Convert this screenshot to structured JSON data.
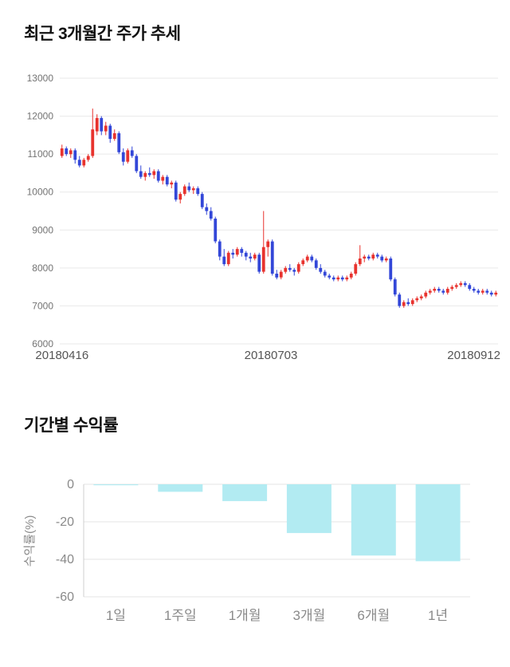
{
  "titles": {
    "price_chart": "최근 3개월간 주가 추세",
    "returns_chart": "기간별 수익률"
  },
  "chart_data": [
    {
      "id": "price",
      "type": "candlestick",
      "title": "최근 3개월간 주가 추세",
      "ylim": [
        6000,
        13000
      ],
      "yticks": [
        13000,
        12000,
        11000,
        10000,
        9000,
        8000,
        7000,
        6000
      ],
      "xtick_labels": [
        "20180416",
        "20180703",
        "20180912"
      ],
      "up_color": "#e8332e",
      "down_color": "#3347d8",
      "grid": true,
      "legend": "none",
      "candles_ohlc": [
        [
          10950,
          11250,
          10900,
          11150
        ],
        [
          11150,
          11200,
          10950,
          11000
        ],
        [
          11000,
          11150,
          10900,
          11100
        ],
        [
          11100,
          11150,
          10750,
          10850
        ],
        [
          10850,
          10950,
          10650,
          10700
        ],
        [
          10700,
          10900,
          10650,
          10850
        ],
        [
          10850,
          11000,
          10800,
          10950
        ],
        [
          10950,
          12200,
          10900,
          11650
        ],
        [
          11600,
          12050,
          11500,
          11950
        ],
        [
          11950,
          12000,
          11500,
          11600
        ],
        [
          11600,
          11850,
          11500,
          11750
        ],
        [
          11750,
          11800,
          11300,
          11400
        ],
        [
          11400,
          11650,
          11350,
          11550
        ],
        [
          11550,
          11600,
          11000,
          11050
        ],
        [
          11050,
          11150,
          10700,
          10800
        ],
        [
          10800,
          11150,
          10750,
          11100
        ],
        [
          11100,
          11200,
          10900,
          10950
        ],
        [
          10950,
          11000,
          10500,
          10550
        ],
        [
          10550,
          10700,
          10350,
          10400
        ],
        [
          10400,
          10550,
          10300,
          10500
        ],
        [
          10500,
          10650,
          10400,
          10450
        ],
        [
          10450,
          10600,
          10350,
          10550
        ],
        [
          10550,
          10600,
          10250,
          10300
        ],
        [
          10300,
          10450,
          10200,
          10400
        ],
        [
          10400,
          10450,
          10150,
          10200
        ],
        [
          10200,
          10300,
          10100,
          10250
        ],
        [
          10250,
          10300,
          9750,
          9800
        ],
        [
          9800,
          10000,
          9700,
          9950
        ],
        [
          9950,
          10200,
          9900,
          10150
        ],
        [
          10150,
          10250,
          10000,
          10050
        ],
        [
          10050,
          10150,
          9950,
          10100
        ],
        [
          10100,
          10150,
          9900,
          9950
        ],
        [
          9950,
          10000,
          9550,
          9600
        ],
        [
          9600,
          9700,
          9400,
          9500
        ],
        [
          9500,
          9600,
          9250,
          9300
        ],
        [
          9300,
          9350,
          8650,
          8700
        ],
        [
          8700,
          8750,
          8200,
          8300
        ],
        [
          8300,
          8500,
          8050,
          8100
        ],
        [
          8100,
          8450,
          8050,
          8400
        ],
        [
          8400,
          8500,
          8250,
          8350
        ],
        [
          8350,
          8550,
          8300,
          8500
        ],
        [
          8500,
          8550,
          8300,
          8400
        ],
        [
          8400,
          8450,
          8200,
          8300
        ],
        [
          8300,
          8400,
          8150,
          8250
        ],
        [
          8250,
          8400,
          8200,
          8350
        ],
        [
          8350,
          8400,
          7850,
          7900
        ],
        [
          7900,
          9500,
          7850,
          8550
        ],
        [
          8550,
          8750,
          8300,
          8700
        ],
        [
          8700,
          8750,
          7800,
          7850
        ],
        [
          7850,
          7950,
          7700,
          7750
        ],
        [
          7750,
          7950,
          7700,
          7900
        ],
        [
          7900,
          8050,
          7850,
          8000
        ],
        [
          8000,
          8100,
          7900,
          7950
        ],
        [
          7950,
          8000,
          7800,
          7900
        ],
        [
          7900,
          8150,
          7850,
          8100
        ],
        [
          8100,
          8250,
          8050,
          8200
        ],
        [
          8200,
          8350,
          8150,
          8300
        ],
        [
          8300,
          8350,
          8150,
          8200
        ],
        [
          8200,
          8250,
          7950,
          8000
        ],
        [
          8000,
          8100,
          7850,
          7900
        ],
        [
          7900,
          7950,
          7750,
          7800
        ],
        [
          7800,
          7850,
          7700,
          7750
        ],
        [
          7750,
          7800,
          7650,
          7700
        ],
        [
          7700,
          7800,
          7650,
          7750
        ],
        [
          7750,
          7800,
          7650,
          7700
        ],
        [
          7700,
          7800,
          7650,
          7750
        ],
        [
          7750,
          7900,
          7700,
          7850
        ],
        [
          7850,
          8150,
          7800,
          8100
        ],
        [
          8100,
          8600,
          8050,
          8250
        ],
        [
          8250,
          8350,
          8150,
          8300
        ],
        [
          8300,
          8350,
          8200,
          8250
        ],
        [
          8250,
          8400,
          8200,
          8350
        ],
        [
          8350,
          8400,
          8250,
          8300
        ],
        [
          8300,
          8350,
          8150,
          8200
        ],
        [
          8200,
          8300,
          8150,
          8250
        ],
        [
          8250,
          8300,
          7650,
          7700
        ],
        [
          7700,
          7750,
          7250,
          7300
        ],
        [
          7300,
          7350,
          6950,
          7000
        ],
        [
          7000,
          7150,
          6950,
          7100
        ],
        [
          7100,
          7200,
          7000,
          7050
        ],
        [
          7050,
          7200,
          7000,
          7150
        ],
        [
          7150,
          7250,
          7100,
          7200
        ],
        [
          7200,
          7300,
          7150,
          7250
        ],
        [
          7250,
          7400,
          7200,
          7350
        ],
        [
          7350,
          7450,
          7300,
          7400
        ],
        [
          7400,
          7500,
          7350,
          7450
        ],
        [
          7450,
          7500,
          7350,
          7400
        ],
        [
          7400,
          7450,
          7300,
          7350
        ],
        [
          7350,
          7500,
          7300,
          7450
        ],
        [
          7450,
          7550,
          7400,
          7500
        ],
        [
          7500,
          7600,
          7450,
          7550
        ],
        [
          7550,
          7650,
          7500,
          7600
        ],
        [
          7600,
          7650,
          7500,
          7550
        ],
        [
          7550,
          7600,
          7400,
          7450
        ],
        [
          7450,
          7500,
          7350,
          7400
        ],
        [
          7400,
          7450,
          7300,
          7350
        ],
        [
          7350,
          7450,
          7300,
          7400
        ],
        [
          7400,
          7450,
          7300,
          7350
        ],
        [
          7350,
          7400,
          7250,
          7300
        ],
        [
          7300,
          7400,
          7250,
          7350
        ]
      ]
    },
    {
      "id": "returns",
      "type": "bar",
      "title": "기간별 수익률",
      "categories": [
        "1일",
        "1주일",
        "1개월",
        "3개월",
        "6개월",
        "1년"
      ],
      "values": [
        -0.5,
        -4,
        -9,
        -26,
        -38,
        -41
      ],
      "ylabel": "수익률(%)",
      "xlabel": "",
      "ylim": [
        -60,
        0
      ],
      "yticks": [
        0,
        -20,
        -40,
        -60
      ],
      "bar_color": "#b2ebf2",
      "grid": true,
      "legend": "none"
    }
  ]
}
